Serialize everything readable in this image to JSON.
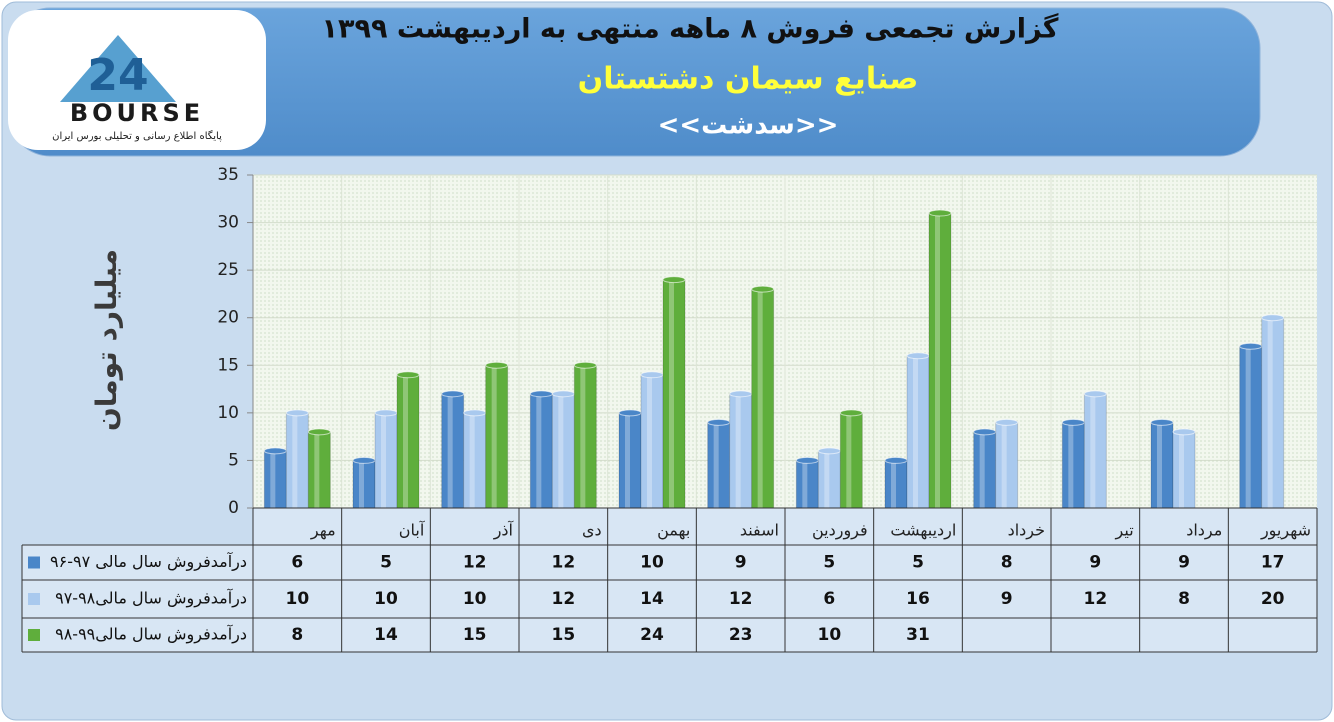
{
  "logo": {
    "mark": "24",
    "name": "BOURSE",
    "tagline": "پایگاه اطلاع رسانی و تحلیلی بورس ایران"
  },
  "chart_data": {
    "type": "bar",
    "title": "گزارش تجمعی فروش ۸ ماهه منتهی به اردیبهشت ۱۳۹۹",
    "subtitle": "صنایع سیمان دشتستان",
    "symbol": "<<سدشت>>",
    "y_label": "میلیارد تومان",
    "categories": [
      "مهر",
      "آبان",
      "آذر",
      "دی",
      "بهمن",
      "اسفند",
      "فروردین",
      "اردیبهشت",
      "خرداد",
      "تیر",
      "مرداد",
      "شهریور"
    ],
    "series": [
      {
        "name": "درآمدفروش سال مالی ۹۷-۹۶",
        "color": "#4a86c8",
        "values": [
          6,
          5,
          12,
          12,
          10,
          9,
          5,
          5,
          8,
          9,
          9,
          17
        ]
      },
      {
        "name": "درآمدفروش سال مالی۹۸-۹۷",
        "color": "#a9c9ee",
        "values": [
          10,
          10,
          10,
          12,
          14,
          12,
          6,
          16,
          9,
          12,
          8,
          20
        ]
      },
      {
        "name": "درآمدفروش سال مالی۹۹-۹۸",
        "color": "#5fae3c",
        "values": [
          8,
          14,
          15,
          15,
          24,
          23,
          10,
          31,
          null,
          null,
          null,
          null
        ]
      }
    ],
    "ylim": [
      0,
      35
    ],
    "yticks": [
      0,
      5,
      10,
      15,
      20,
      25,
      30,
      35
    ],
    "grid": true,
    "data_table": true
  }
}
